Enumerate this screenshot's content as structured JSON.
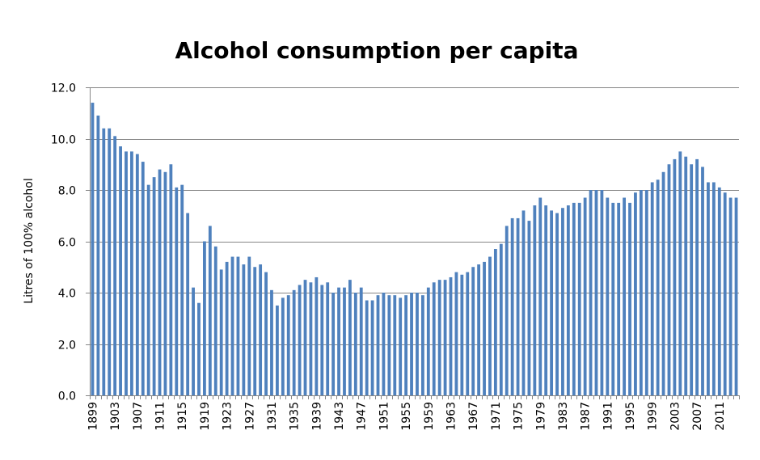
{
  "chart_data": {
    "type": "bar",
    "title": "Alcohol consumption per capita",
    "xlabel": "",
    "ylabel": "Litres of 100% alcohol",
    "ylim": [
      0,
      12
    ],
    "yticks": [
      "0.0",
      "2.0",
      "4.0",
      "6.0",
      "8.0",
      "10.0",
      "12.0"
    ],
    "ytick_values": [
      0,
      2,
      4,
      6,
      8,
      10,
      12
    ],
    "grid": true,
    "legend": "none",
    "x_start_year": 1899,
    "x_tick_every": 4,
    "series": [
      {
        "name": "Alcohol consumption",
        "color": "#4F81BD",
        "values": [
          11.4,
          10.9,
          10.4,
          10.4,
          10.1,
          9.7,
          9.5,
          9.5,
          9.4,
          9.1,
          8.2,
          8.5,
          8.8,
          8.7,
          9.0,
          8.1,
          8.2,
          7.1,
          4.2,
          3.6,
          6.0,
          6.6,
          5.8,
          4.9,
          5.2,
          5.4,
          5.4,
          5.1,
          5.4,
          5.0,
          5.1,
          4.8,
          4.1,
          3.5,
          3.8,
          3.9,
          4.1,
          4.3,
          4.5,
          4.4,
          4.6,
          4.3,
          4.4,
          4.0,
          4.2,
          4.2,
          4.5,
          4.0,
          4.2,
          3.7,
          3.7,
          3.9,
          4.0,
          3.9,
          3.9,
          3.8,
          3.9,
          4.0,
          4.0,
          3.9,
          4.2,
          4.4,
          4.5,
          4.5,
          4.6,
          4.8,
          4.7,
          4.8,
          5.0,
          5.1,
          5.2,
          5.4,
          5.7,
          5.9,
          6.6,
          6.9,
          6.9,
          7.2,
          6.8,
          7.4,
          7.7,
          7.4,
          7.2,
          7.1,
          7.3,
          7.4,
          7.5,
          7.5,
          7.7,
          8.0,
          8.0,
          8.0,
          7.7,
          7.5,
          7.5,
          7.7,
          7.5,
          7.9,
          8.0,
          8.0,
          8.3,
          8.4,
          8.7,
          9.0,
          9.2,
          9.5,
          9.3,
          9.0,
          9.2,
          8.9,
          8.3,
          8.3,
          8.1,
          7.9,
          7.7,
          7.7
        ]
      }
    ]
  }
}
